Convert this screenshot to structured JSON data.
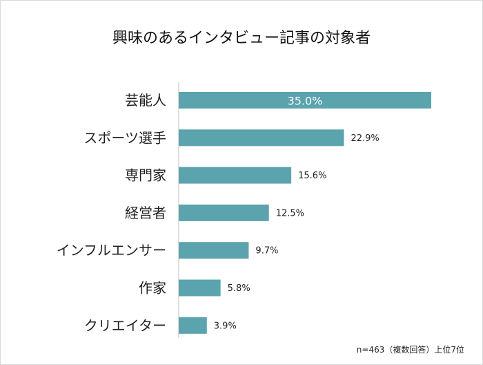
{
  "chart_data": {
    "type": "bar",
    "orientation": "horizontal",
    "title": "興味のあるインタビュー記事の対象者",
    "categories": [
      "芸能人",
      "スポーツ選手",
      "専門家",
      "経営者",
      "インフルエンサー",
      "作家",
      "クリエイター"
    ],
    "values": [
      35.0,
      22.9,
      15.6,
      12.5,
      9.7,
      5.8,
      3.9
    ],
    "value_labels": [
      "35.0%",
      "22.9%",
      "15.6%",
      "12.5%",
      "9.7%",
      "5.8%",
      "3.9%"
    ],
    "xlim": [
      0,
      40
    ],
    "grid": false,
    "bar_color": "#5ba3ad",
    "note": "n=463（複数回答）上位7位"
  }
}
